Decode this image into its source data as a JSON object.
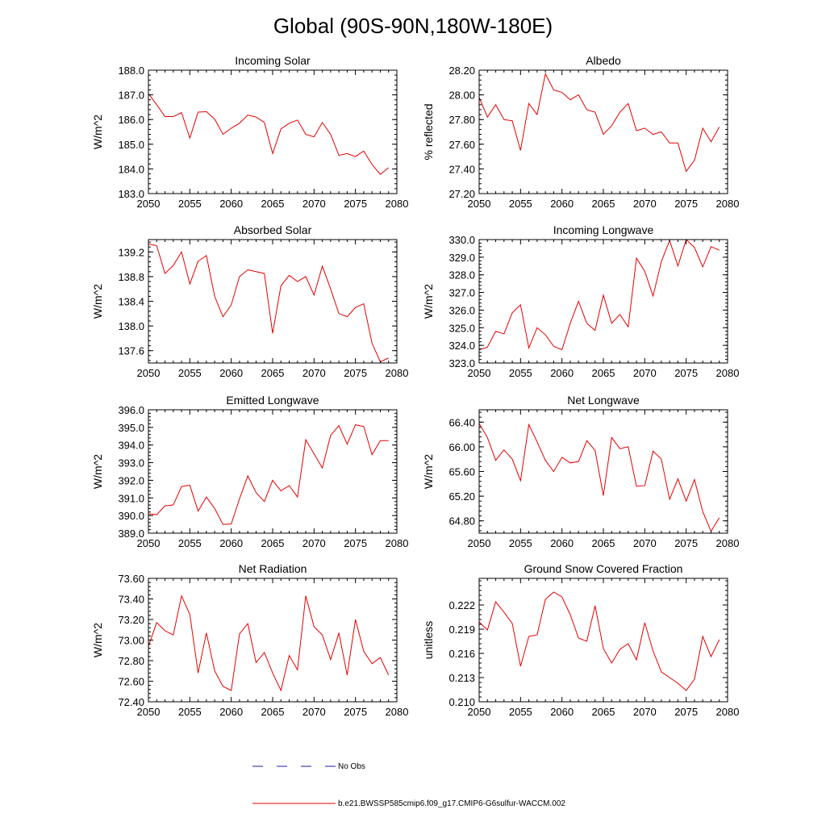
{
  "figure_title": "Global (90S-90N,180W-180E)",
  "legend": {
    "obs_label": "No Obs",
    "obs_color": "#1a1aa6",
    "model_label": "b.e21.BWSSP585cmip6.f09_g17.CMIP6-G6sulfur-WACCM.002",
    "model_color": "#e60000"
  },
  "chart_data": [
    {
      "type": "line",
      "title": "Incoming Solar",
      "ylabel": "W/m^2",
      "xlim": [
        2050,
        2080
      ],
      "ylim": [
        183.0,
        188.0
      ],
      "xticks": [
        2050,
        2055,
        2060,
        2065,
        2070,
        2075,
        2080
      ],
      "yticks": [
        183.0,
        184.0,
        185.0,
        186.0,
        187.0,
        188.0
      ],
      "ytick_labels": [
        "183.0",
        "184.0",
        "185.0",
        "186.0",
        "187.0",
        "188.0"
      ],
      "x": [
        2050,
        2051,
        2052,
        2053,
        2054,
        2055,
        2056,
        2057,
        2058,
        2059,
        2060,
        2061,
        2062,
        2063,
        2064,
        2065,
        2066,
        2067,
        2068,
        2069,
        2070,
        2071,
        2072,
        2073,
        2074,
        2075,
        2076,
        2077,
        2078,
        2079
      ],
      "series": [
        {
          "values": [
            187.05,
            186.6,
            186.12,
            186.12,
            186.28,
            185.25,
            186.3,
            186.32,
            186.02,
            185.4,
            185.65,
            185.85,
            186.18,
            186.1,
            185.88,
            184.62,
            185.62,
            185.85,
            185.98,
            185.4,
            185.3,
            185.88,
            185.4,
            184.55,
            184.62,
            184.5,
            184.72,
            184.18,
            183.78,
            184.05
          ]
        }
      ]
    },
    {
      "type": "line",
      "title": "Albedo",
      "ylabel": "% reflected",
      "xlim": [
        2050,
        2080
      ],
      "ylim": [
        27.2,
        28.2
      ],
      "xticks": [
        2050,
        2055,
        2060,
        2065,
        2070,
        2075,
        2080
      ],
      "yticks": [
        27.2,
        27.4,
        27.6,
        27.8,
        28.0,
        28.2
      ],
      "ytick_labels": [
        "27.20",
        "27.40",
        "27.60",
        "27.80",
        "28.00",
        "28.20"
      ],
      "x": [
        2050,
        2051,
        2052,
        2053,
        2054,
        2055,
        2056,
        2057,
        2058,
        2059,
        2060,
        2061,
        2062,
        2063,
        2064,
        2065,
        2066,
        2067,
        2068,
        2069,
        2070,
        2071,
        2072,
        2073,
        2074,
        2075,
        2076,
        2077,
        2078,
        2079
      ],
      "series": [
        {
          "values": [
            27.98,
            27.82,
            27.92,
            27.8,
            27.79,
            27.55,
            27.93,
            27.84,
            28.17,
            28.04,
            28.02,
            27.96,
            28.0,
            27.88,
            27.86,
            27.68,
            27.75,
            27.86,
            27.93,
            27.71,
            27.73,
            27.68,
            27.7,
            27.61,
            27.61,
            27.38,
            27.47,
            27.73,
            27.62,
            27.74
          ]
        }
      ]
    },
    {
      "type": "line",
      "title": "Absorbed Solar",
      "ylabel": "W/m^2",
      "xlim": [
        2050,
        2080
      ],
      "ylim": [
        137.4,
        139.4
      ],
      "xticks": [
        2050,
        2055,
        2060,
        2065,
        2070,
        2075,
        2080
      ],
      "yticks": [
        137.6,
        138.0,
        138.4,
        138.8,
        139.2
      ],
      "ytick_labels": [
        "137.6",
        "138.0",
        "138.4",
        "138.8",
        "139.2"
      ],
      "x": [
        2050,
        2051,
        2052,
        2053,
        2054,
        2055,
        2056,
        2057,
        2058,
        2059,
        2060,
        2061,
        2062,
        2063,
        2064,
        2065,
        2066,
        2067,
        2068,
        2069,
        2070,
        2071,
        2072,
        2073,
        2074,
        2075,
        2076,
        2077,
        2078,
        2079
      ],
      "series": [
        {
          "values": [
            139.33,
            139.3,
            138.85,
            138.98,
            139.2,
            138.68,
            139.05,
            139.14,
            138.48,
            138.15,
            138.34,
            138.8,
            138.91,
            138.88,
            138.85,
            137.88,
            138.65,
            138.82,
            138.72,
            138.8,
            138.5,
            138.97,
            138.6,
            138.2,
            138.15,
            138.3,
            138.36,
            137.72,
            137.42,
            137.48
          ]
        }
      ]
    },
    {
      "type": "line",
      "title": "Incoming Longwave",
      "ylabel": "W/m^2",
      "xlim": [
        2050,
        2080
      ],
      "ylim": [
        323.0,
        330.0
      ],
      "xticks": [
        2050,
        2055,
        2060,
        2065,
        2070,
        2075,
        2080
      ],
      "yticks": [
        323.0,
        324.0,
        325.0,
        326.0,
        327.0,
        328.0,
        329.0,
        330.0
      ],
      "ytick_labels": [
        "323.0",
        "324.0",
        "325.0",
        "326.0",
        "327.0",
        "328.0",
        "329.0",
        "330.0"
      ],
      "x": [
        2050,
        2051,
        2052,
        2053,
        2054,
        2055,
        2056,
        2057,
        2058,
        2059,
        2060,
        2061,
        2062,
        2063,
        2064,
        2065,
        2066,
        2067,
        2068,
        2069,
        2070,
        2071,
        2072,
        2073,
        2074,
        2075,
        2076,
        2077,
        2078,
        2079
      ],
      "series": [
        {
          "values": [
            323.75,
            323.9,
            324.8,
            324.65,
            325.85,
            326.3,
            323.85,
            325.0,
            324.6,
            323.95,
            323.75,
            325.25,
            326.5,
            325.25,
            324.85,
            326.85,
            325.25,
            325.75,
            325.05,
            328.95,
            328.2,
            326.8,
            328.75,
            329.95,
            328.5,
            330.0,
            329.55,
            328.45,
            329.6,
            329.4
          ]
        }
      ]
    },
    {
      "type": "line",
      "title": "Emitted Longwave",
      "ylabel": "W/m^2",
      "xlim": [
        2050,
        2080
      ],
      "ylim": [
        389.0,
        396.0
      ],
      "xticks": [
        2050,
        2055,
        2060,
        2065,
        2070,
        2075,
        2080
      ],
      "yticks": [
        389.0,
        390.0,
        391.0,
        392.0,
        393.0,
        394.0,
        395.0,
        396.0
      ],
      "ytick_labels": [
        "389.0",
        "390.0",
        "391.0",
        "392.0",
        "393.0",
        "394.0",
        "395.0",
        "396.0"
      ],
      "x": [
        2050,
        2051,
        2052,
        2053,
        2054,
        2055,
        2056,
        2057,
        2058,
        2059,
        2060,
        2061,
        2062,
        2063,
        2064,
        2065,
        2066,
        2067,
        2068,
        2069,
        2070,
        2071,
        2072,
        2073,
        2074,
        2075,
        2076,
        2077,
        2078,
        2079
      ],
      "series": [
        {
          "values": [
            390.1,
            390.05,
            390.55,
            390.6,
            391.65,
            391.72,
            390.25,
            391.05,
            390.4,
            389.5,
            389.52,
            390.95,
            392.25,
            391.3,
            390.8,
            392.0,
            391.4,
            391.7,
            391.05,
            394.3,
            393.5,
            392.7,
            394.55,
            395.1,
            394.05,
            395.15,
            395.05,
            393.45,
            394.25,
            394.25
          ]
        }
      ]
    },
    {
      "type": "line",
      "title": "Net Longwave",
      "ylabel": "W/m^2",
      "xlim": [
        2050,
        2080
      ],
      "ylim": [
        64.6,
        66.6
      ],
      "xticks": [
        2050,
        2055,
        2060,
        2065,
        2070,
        2075,
        2080
      ],
      "yticks": [
        64.8,
        65.2,
        65.6,
        66.0,
        66.4
      ],
      "ytick_labels": [
        "64.80",
        "65.20",
        "65.60",
        "66.00",
        "66.40"
      ],
      "x": [
        2050,
        2051,
        2052,
        2053,
        2054,
        2055,
        2056,
        2057,
        2058,
        2059,
        2060,
        2061,
        2062,
        2063,
        2064,
        2065,
        2066,
        2067,
        2068,
        2069,
        2070,
        2071,
        2072,
        2073,
        2074,
        2075,
        2076,
        2077,
        2078,
        2079
      ],
      "series": [
        {
          "values": [
            66.38,
            66.15,
            65.78,
            65.95,
            65.8,
            65.45,
            66.36,
            66.08,
            65.78,
            65.6,
            65.83,
            65.74,
            65.76,
            66.1,
            65.94,
            65.21,
            66.15,
            65.97,
            66.0,
            65.36,
            65.37,
            65.93,
            65.8,
            65.15,
            65.48,
            65.12,
            65.47,
            64.95,
            64.63,
            64.85
          ]
        }
      ]
    },
    {
      "type": "line",
      "title": "Net Radiation",
      "ylabel": "W/m^2",
      "xlim": [
        2050,
        2080
      ],
      "ylim": [
        72.4,
        73.6
      ],
      "xticks": [
        2050,
        2055,
        2060,
        2065,
        2070,
        2075,
        2080
      ],
      "yticks": [
        72.4,
        72.6,
        72.8,
        73.0,
        73.2,
        73.4,
        73.6
      ],
      "ytick_labels": [
        "72.40",
        "72.60",
        "72.80",
        "73.00",
        "73.20",
        "73.40",
        "73.60"
      ],
      "x": [
        2050,
        2051,
        2052,
        2053,
        2054,
        2055,
        2056,
        2057,
        2058,
        2059,
        2060,
        2061,
        2062,
        2063,
        2064,
        2065,
        2066,
        2067,
        2068,
        2069,
        2070,
        2071,
        2072,
        2073,
        2074,
        2075,
        2076,
        2077,
        2078,
        2079
      ],
      "series": [
        {
          "values": [
            72.94,
            73.17,
            73.09,
            73.05,
            73.43,
            73.25,
            72.68,
            73.07,
            72.7,
            72.55,
            72.51,
            73.06,
            73.16,
            72.78,
            72.88,
            72.68,
            72.51,
            72.85,
            72.71,
            73.43,
            73.13,
            73.05,
            72.81,
            73.07,
            72.66,
            73.2,
            72.89,
            72.77,
            72.83,
            72.66
          ]
        }
      ]
    },
    {
      "type": "line",
      "title": "Ground Snow Covered Fraction",
      "ylabel": "unitless",
      "xlim": [
        2050,
        2080
      ],
      "ylim": [
        0.21,
        0.2253
      ],
      "xticks": [
        2050,
        2055,
        2060,
        2065,
        2070,
        2075,
        2080
      ],
      "yticks": [
        0.21,
        0.213,
        0.216,
        0.219,
        0.222
      ],
      "ytick_labels": [
        "0.210",
        "0.213",
        "0.216",
        "0.219",
        "0.222"
      ],
      "x": [
        2050,
        2051,
        2052,
        2053,
        2054,
        2055,
        2056,
        2057,
        2058,
        2059,
        2060,
        2061,
        2062,
        2063,
        2064,
        2065,
        2066,
        2067,
        2068,
        2069,
        2070,
        2071,
        2072,
        2073,
        2074,
        2075,
        2076,
        2077,
        2078,
        2079
      ],
      "series": [
        {
          "values": [
            0.2199,
            0.2189,
            0.2224,
            0.2211,
            0.2197,
            0.2144,
            0.2181,
            0.2183,
            0.2227,
            0.2236,
            0.223,
            0.2208,
            0.2179,
            0.2175,
            0.2219,
            0.2166,
            0.2148,
            0.2165,
            0.2172,
            0.2152,
            0.2198,
            0.2163,
            0.2137,
            0.213,
            0.2123,
            0.2114,
            0.2128,
            0.2181,
            0.2156,
            0.2177
          ]
        }
      ]
    }
  ]
}
